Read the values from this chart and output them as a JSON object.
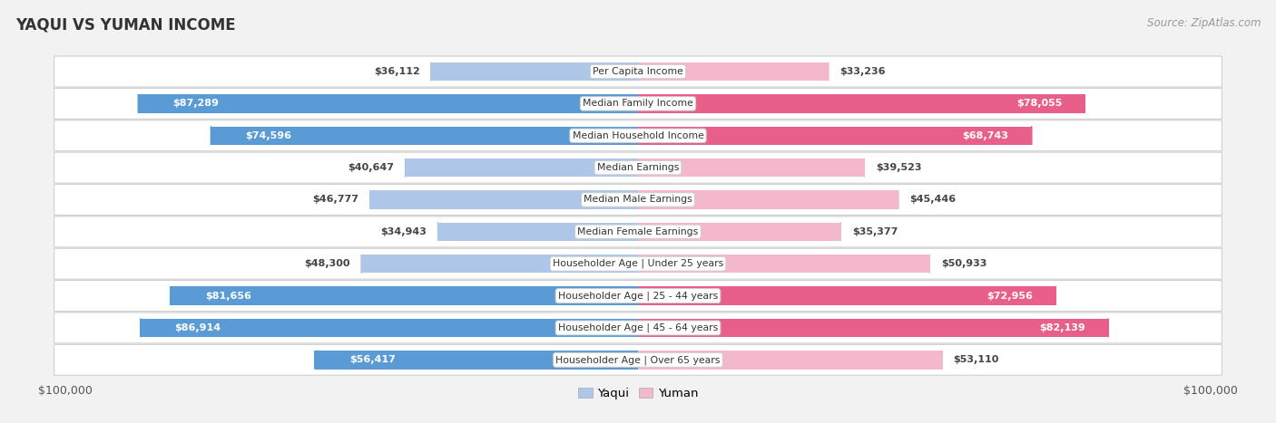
{
  "title": "YAQUI VS YUMAN INCOME",
  "source": "Source: ZipAtlas.com",
  "categories": [
    "Per Capita Income",
    "Median Family Income",
    "Median Household Income",
    "Median Earnings",
    "Median Male Earnings",
    "Median Female Earnings",
    "Householder Age | Under 25 years",
    "Householder Age | 25 - 44 years",
    "Householder Age | 45 - 64 years",
    "Householder Age | Over 65 years"
  ],
  "yaqui_values": [
    36112,
    87289,
    74596,
    40647,
    46777,
    34943,
    48300,
    81656,
    86914,
    56417
  ],
  "yuman_values": [
    33236,
    78055,
    68743,
    39523,
    45446,
    35377,
    50933,
    72956,
    82139,
    53110
  ],
  "yaqui_labels": [
    "$36,112",
    "$87,289",
    "$74,596",
    "$40,647",
    "$46,777",
    "$34,943",
    "$48,300",
    "$81,656",
    "$86,914",
    "$56,417"
  ],
  "yuman_labels": [
    "$33,236",
    "$78,055",
    "$68,743",
    "$39,523",
    "$45,446",
    "$35,377",
    "$50,933",
    "$72,956",
    "$82,139",
    "$53,110"
  ],
  "max_value": 100000,
  "yaqui_light_color": "#aec6e8",
  "yaqui_dark_color": "#5b9bd5",
  "yuman_light_color": "#f4b8cc",
  "yuman_dark_color": "#e8608a",
  "bg_color": "#f2f2f2",
  "row_light_bg": "#f8f8f8",
  "row_dark_bg": "#eeeeee",
  "white_label_threshold": 0.55,
  "bar_height": 0.58
}
